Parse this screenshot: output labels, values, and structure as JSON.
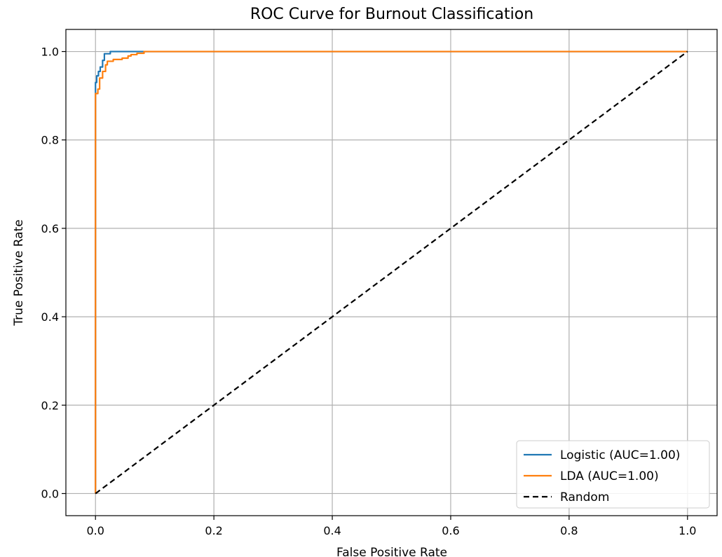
{
  "chart_data": {
    "type": "line",
    "title": "ROC Curve for Burnout Classification",
    "xlabel": "False Positive Rate",
    "ylabel": "True Positive Rate",
    "xlim": [
      -0.05,
      1.05
    ],
    "ylim": [
      -0.05,
      1.05
    ],
    "xticks": [
      0.0,
      0.2,
      0.4,
      0.6,
      0.8,
      1.0
    ],
    "yticks": [
      0.0,
      0.2,
      0.4,
      0.6,
      0.8,
      1.0
    ],
    "xtick_labels": [
      "0.0",
      "0.2",
      "0.4",
      "0.6",
      "0.8",
      "1.0"
    ],
    "ytick_labels": [
      "0.0",
      "0.2",
      "0.4",
      "0.6",
      "0.8",
      "1.0"
    ],
    "grid": true,
    "legend_position": "lower right",
    "series": [
      {
        "name": "Logistic (AUC=1.00)",
        "color": "#1f77b4",
        "style": "solid",
        "x": [
          0.0,
          0.0,
          0.0,
          0.002,
          0.002,
          0.005,
          0.005,
          0.008,
          0.008,
          0.012,
          0.012,
          0.015,
          0.015,
          0.025,
          0.025,
          0.085,
          1.0
        ],
        "y": [
          0.0,
          0.91,
          0.93,
          0.93,
          0.945,
          0.945,
          0.955,
          0.955,
          0.965,
          0.965,
          0.98,
          0.98,
          0.995,
          0.995,
          1.0,
          1.0,
          1.0
        ]
      },
      {
        "name": "LDA (AUC=1.00)",
        "color": "#ff7f0e",
        "style": "solid",
        "x": [
          0.0,
          0.0,
          0.004,
          0.004,
          0.007,
          0.007,
          0.012,
          0.012,
          0.017,
          0.017,
          0.02,
          0.02,
          0.03,
          0.03,
          0.045,
          0.045,
          0.055,
          0.055,
          0.06,
          0.06,
          0.07,
          0.07,
          0.082,
          0.082,
          1.0
        ],
        "y": [
          0.0,
          0.905,
          0.905,
          0.915,
          0.915,
          0.94,
          0.94,
          0.955,
          0.955,
          0.97,
          0.97,
          0.978,
          0.978,
          0.982,
          0.982,
          0.985,
          0.985,
          0.99,
          0.99,
          0.993,
          0.993,
          0.996,
          0.996,
          1.0,
          1.0
        ]
      },
      {
        "name": "Random",
        "color": "#000000",
        "style": "dashed",
        "x": [
          0.0,
          1.0
        ],
        "y": [
          0.0,
          1.0
        ]
      }
    ]
  }
}
